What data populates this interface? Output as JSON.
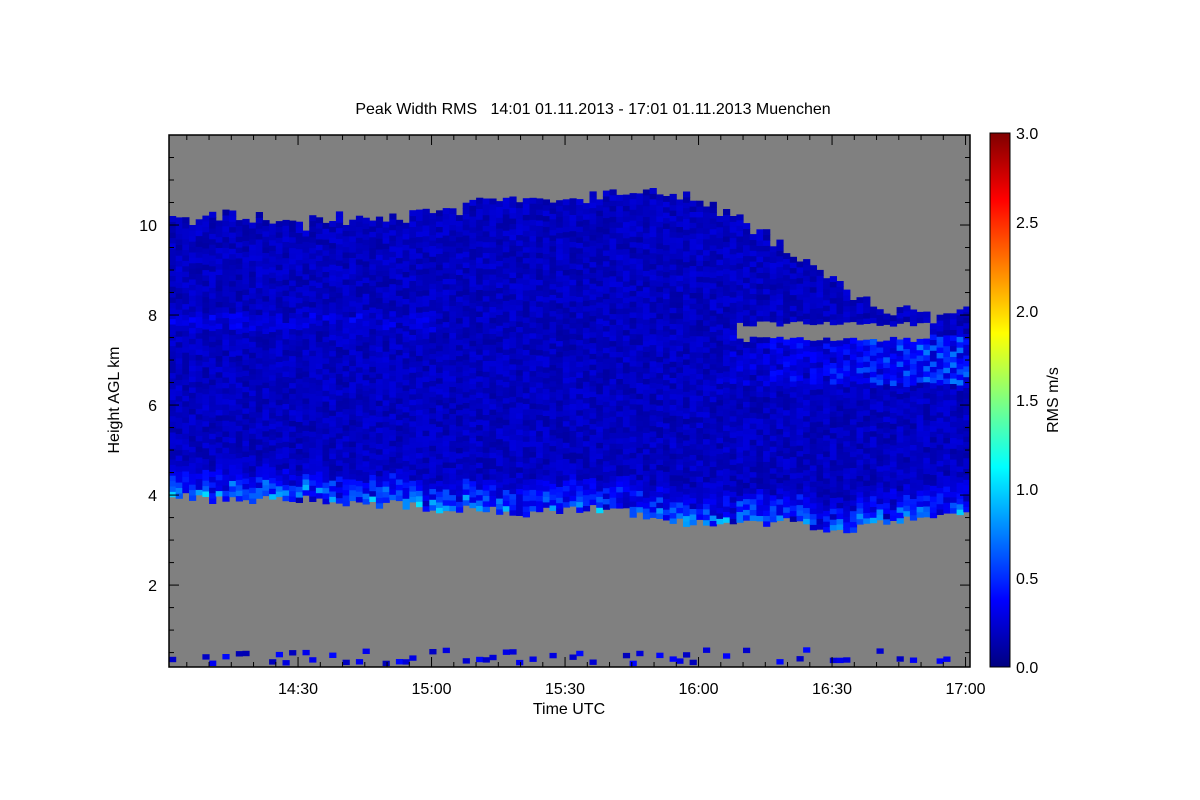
{
  "chart_data": {
    "type": "heatmap",
    "title": "Peak Width RMS   14:01 01.11.2013 - 17:01 01.11.2013 Muenchen",
    "xlabel": "Time UTC",
    "ylabel": "Height AGL km",
    "x_range": [
      "14:01",
      "17:01"
    ],
    "x_ticks": [
      "14:30",
      "15:00",
      "15:30",
      "16:00",
      "16:30",
      "17:00"
    ],
    "ylim": [
      0.18,
      12
    ],
    "y_ticks": [
      "2",
      "4",
      "6",
      "8",
      "10"
    ],
    "colorbar": {
      "label": "RMS m/s",
      "range": [
        0,
        3
      ],
      "ticks": [
        "0.0",
        "0.5",
        "1.0",
        "1.5",
        "2.0",
        "2.5",
        "3.0"
      ],
      "colormap": "jet"
    },
    "missing_color": "#808080",
    "profile_times": [
      "14:01",
      "14:11",
      "14:21",
      "14:31",
      "14:41",
      "14:51",
      "15:01",
      "15:11",
      "15:21",
      "15:31",
      "15:41",
      "15:51",
      "16:01",
      "16:11",
      "16:21",
      "16:31",
      "16:41",
      "16:51",
      "17:01"
    ],
    "cloud_top_km": [
      10.1,
      10.1,
      10.1,
      10.0,
      10.1,
      10.1,
      10.2,
      10.5,
      10.6,
      10.5,
      10.6,
      10.6,
      10.4,
      9.9,
      9.3,
      8.6,
      8.1,
      7.9,
      8.0
    ],
    "cloud_base_km": [
      4.0,
      3.9,
      3.9,
      3.9,
      3.8,
      3.8,
      3.7,
      3.7,
      3.6,
      3.7,
      3.7,
      3.4,
      3.4,
      3.4,
      3.4,
      3.2,
      3.4,
      3.5,
      3.6
    ],
    "typical_rms_ms": 0.2,
    "enhanced_rms_near_base_ms": 0.6,
    "enhanced_layer_after_1600": {
      "height_km": [
        6.4,
        7.5
      ],
      "rms_ms": 0.6
    }
  }
}
